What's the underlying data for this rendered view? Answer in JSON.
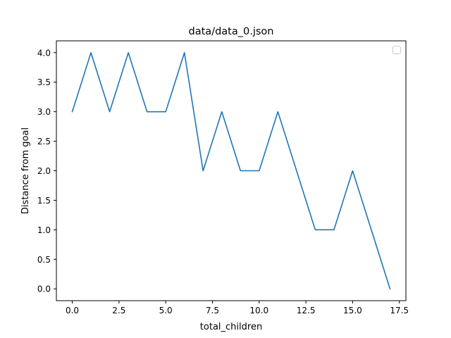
{
  "chart_data": {
    "type": "line",
    "title": "data/data_0.json",
    "xlabel": "total_children",
    "ylabel": "Distance from goal",
    "x": [
      0,
      1,
      2,
      3,
      4,
      5,
      6,
      7,
      8,
      9,
      10,
      11,
      12,
      13,
      14,
      15,
      16,
      17
    ],
    "series": [
      {
        "values": [
          3,
          4,
          3,
          4,
          3,
          3,
          4,
          2,
          3,
          2,
          2,
          3,
          2,
          1,
          1,
          2,
          1,
          0
        ]
      }
    ],
    "xlim": [
      -0.85,
      17.85
    ],
    "ylim": [
      -0.2,
      4.2
    ],
    "xticks": [
      0.0,
      2.5,
      5.0,
      7.5,
      10.0,
      12.5,
      15.0,
      17.5
    ],
    "xtick_labels": [
      "0.0",
      "2.5",
      "5.0",
      "7.5",
      "10.0",
      "12.5",
      "15.0",
      "17.5"
    ],
    "yticks": [
      0.0,
      0.5,
      1.0,
      1.5,
      2.0,
      2.5,
      3.0,
      3.5,
      4.0
    ],
    "ytick_labels": [
      "0.0",
      "0.5",
      "1.0",
      "1.5",
      "2.0",
      "2.5",
      "3.0",
      "3.5",
      "4.0"
    ],
    "line_color": "#1f77b4",
    "grid": false,
    "legend": "top-right (empty)"
  }
}
